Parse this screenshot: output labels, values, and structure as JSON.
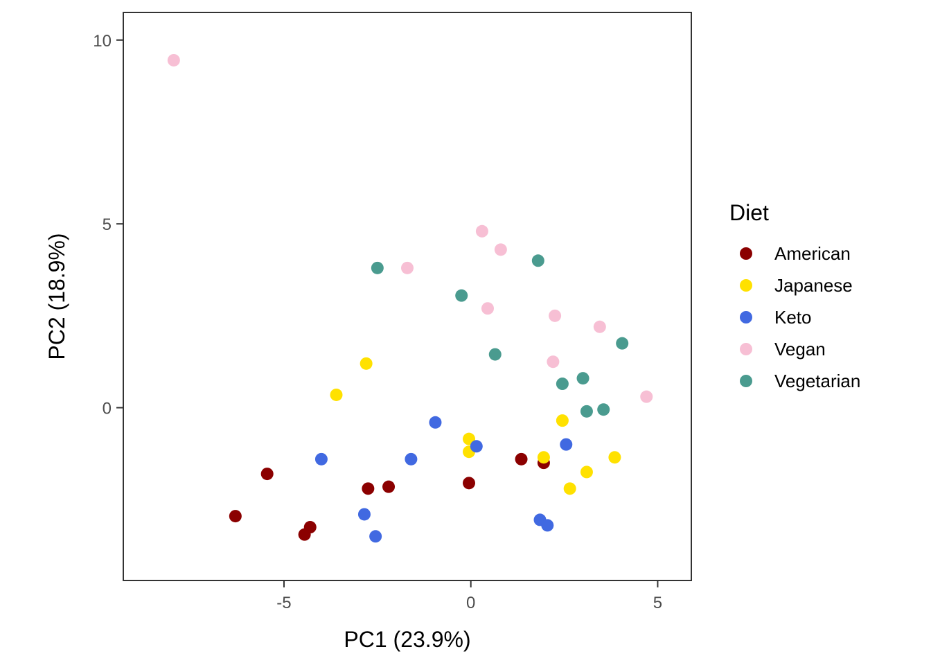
{
  "chart_data": {
    "type": "scatter",
    "xlabel": "PC1 (23.9%)",
    "ylabel": "PC2 (18.9%)",
    "xlim": [
      -9.3,
      5.9
    ],
    "ylim": [
      -4.7,
      10.75
    ],
    "x_ticks": [
      -5,
      0,
      5
    ],
    "y_ticks": [
      0,
      5,
      10
    ],
    "x_tick_labels": [
      "-5",
      "0",
      "5"
    ],
    "y_tick_labels": [
      "0",
      "5",
      "10"
    ],
    "grid": false,
    "legend": {
      "title": "Diet",
      "placement": "right"
    },
    "series": [
      {
        "name": "American",
        "color": "#8B0000",
        "points": [
          [
            -6.3,
            -2.95
          ],
          [
            -5.45,
            -1.8
          ],
          [
            -4.45,
            -3.45
          ],
          [
            -4.3,
            -3.25
          ],
          [
            -2.75,
            -2.2
          ],
          [
            -2.2,
            -2.15
          ],
          [
            -0.05,
            -2.05
          ],
          [
            1.35,
            -1.4
          ],
          [
            1.95,
            -1.5
          ]
        ]
      },
      {
        "name": "Japanese",
        "color": "#FFE100",
        "points": [
          [
            -3.6,
            0.35
          ],
          [
            -2.8,
            1.2
          ],
          [
            -0.05,
            -0.85
          ],
          [
            -0.05,
            -1.2
          ],
          [
            1.95,
            -1.35
          ],
          [
            2.45,
            -0.35
          ],
          [
            2.65,
            -2.2
          ],
          [
            3.1,
            -1.75
          ],
          [
            3.85,
            -1.35
          ]
        ]
      },
      {
        "name": "Keto",
        "color": "#4169E1",
        "points": [
          [
            -4.0,
            -1.4
          ],
          [
            -2.85,
            -2.9
          ],
          [
            -2.55,
            -3.5
          ],
          [
            -1.6,
            -1.4
          ],
          [
            -0.95,
            -0.4
          ],
          [
            0.15,
            -1.05
          ],
          [
            1.85,
            -3.05
          ],
          [
            2.05,
            -3.2
          ],
          [
            2.55,
            -1.0
          ]
        ]
      },
      {
        "name": "Vegan",
        "color": "#F7BFD4",
        "points": [
          [
            -7.95,
            9.45
          ],
          [
            -1.7,
            3.8
          ],
          [
            0.3,
            4.8
          ],
          [
            0.45,
            2.7
          ],
          [
            0.8,
            4.3
          ],
          [
            2.2,
            1.25
          ],
          [
            2.25,
            2.5
          ],
          [
            3.45,
            2.2
          ],
          [
            4.7,
            0.3
          ]
        ]
      },
      {
        "name": "Vegetarian",
        "color": "#4A9B8F",
        "points": [
          [
            -2.5,
            3.8
          ],
          [
            -0.25,
            3.05
          ],
          [
            0.65,
            1.45
          ],
          [
            1.8,
            4.0
          ],
          [
            2.45,
            0.65
          ],
          [
            3.0,
            0.8
          ],
          [
            3.1,
            -0.1
          ],
          [
            3.55,
            -0.05
          ],
          [
            4.05,
            1.75
          ]
        ]
      }
    ]
  }
}
